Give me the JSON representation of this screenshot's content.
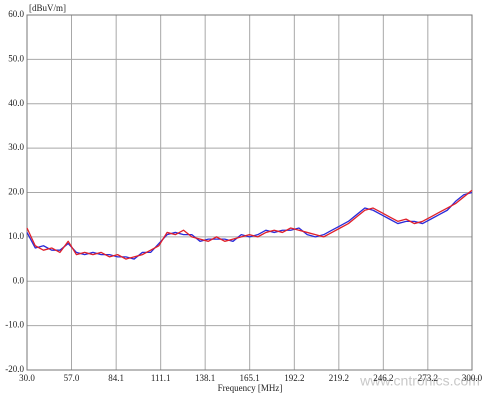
{
  "chart_data": {
    "type": "line",
    "y_label": "[dBuV/m]",
    "x_label": "Frequency [MHz]",
    "watermark": "www.cntronics.com",
    "x": [
      30,
      35,
      40,
      45,
      50,
      55,
      60,
      65,
      70,
      75,
      80,
      85,
      90,
      95,
      100,
      105,
      110,
      115,
      120,
      125,
      130,
      135,
      140,
      145,
      150,
      155,
      160,
      165,
      170,
      175,
      180,
      185,
      190,
      195,
      200,
      205,
      210,
      215,
      220,
      225,
      230,
      235,
      240,
      245,
      250,
      255,
      260,
      265,
      270,
      275,
      280,
      285,
      290,
      295,
      300
    ],
    "series": [
      {
        "color": "#2b2bd9",
        "values": [
          11,
          7.5,
          8,
          7,
          7,
          8.5,
          6.5,
          6,
          6.5,
          6,
          6,
          5.5,
          5.5,
          5,
          6.5,
          6.5,
          8.5,
          10.5,
          11,
          10.5,
          10.5,
          9,
          9.5,
          9.5,
          9.5,
          9,
          10.5,
          10,
          10.5,
          11.5,
          11,
          11.5,
          11.5,
          12,
          10.5,
          10,
          10.5,
          11.5,
          12.5,
          13.5,
          15,
          16.5,
          16,
          15,
          14,
          13,
          13.5,
          13.5,
          13,
          14,
          15,
          16,
          18,
          19.5,
          20
        ]
      },
      {
        "color": "#e0202a",
        "values": [
          12,
          8,
          7,
          7.5,
          6.5,
          9,
          6,
          6.5,
          6,
          6.5,
          5.5,
          6,
          5,
          5.5,
          6,
          7,
          8,
          11,
          10.5,
          11.5,
          10,
          9.5,
          9,
          10,
          9,
          9.5,
          10,
          10.5,
          10,
          11,
          11.5,
          11,
          12,
          11.5,
          11,
          10.5,
          10,
          11,
          12,
          13,
          14.5,
          16,
          16.5,
          15.5,
          14.5,
          13.5,
          14,
          13,
          13.5,
          14.5,
          15.5,
          16.5,
          17.5,
          19,
          20.5
        ]
      }
    ],
    "xlim": [
      30,
      300
    ],
    "xticks": [
      {
        "value": 30,
        "label": "30.0"
      },
      {
        "value": 57,
        "label": "57.0"
      },
      84.1,
      111.1,
      138.1,
      165.1,
      192.2,
      219.2,
      246.2,
      273.2,
      {
        "value": 300,
        "label": "300.0"
      }
    ],
    "ylim": [
      -20,
      60
    ],
    "yticks": [
      {
        "value": -20,
        "label": "-20.0"
      },
      {
        "value": -10,
        "label": "-10.0"
      },
      {
        "value": 0,
        "label": "0.0"
      },
      {
        "value": 10,
        "label": "10.0"
      },
      {
        "value": 20,
        "label": "20.0"
      },
      {
        "value": 30,
        "label": "30.0"
      },
      {
        "value": 40,
        "label": "40.0"
      },
      {
        "value": 50,
        "label": "50.0"
      },
      {
        "value": 60,
        "label": "60.0"
      }
    ],
    "grid": true
  }
}
